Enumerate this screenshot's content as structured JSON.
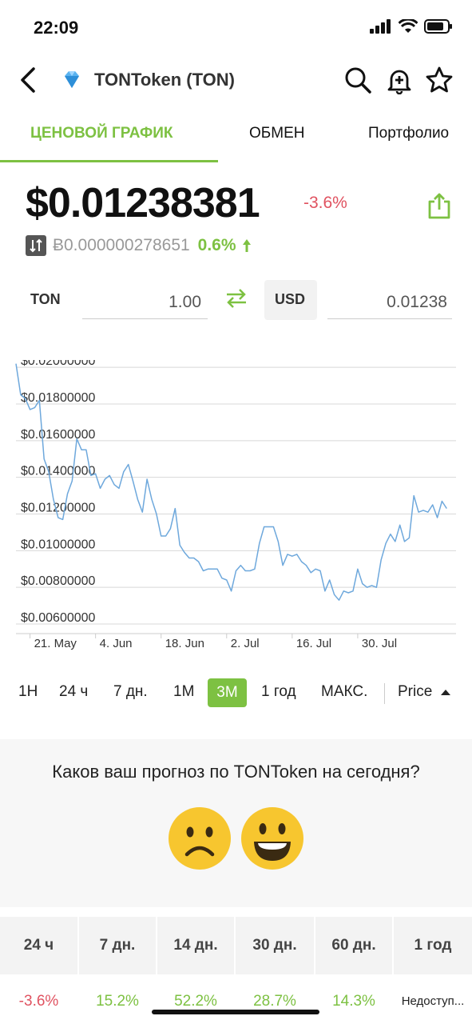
{
  "status_bar": {
    "time": "22:09"
  },
  "nav": {
    "title": "TONToken (TON)",
    "icons": [
      "back-icon",
      "diamond-icon",
      "search-icon",
      "bell-plus-icon",
      "star-icon"
    ]
  },
  "tabs": [
    {
      "label": "ЦЕНОВОЙ ГРАФИК",
      "active": true
    },
    {
      "label": "ОБМЕН",
      "active": false
    },
    {
      "label": "Портфолио",
      "active": false
    }
  ],
  "price": {
    "usd": "$0.01238381",
    "change": "-3.6%",
    "btc": "Ƀ0.000000278651",
    "btc_change": "0.6%"
  },
  "converter": {
    "from_symbol": "TON",
    "from_value": "1.00",
    "to_symbol": "USD",
    "to_value": "0.01238"
  },
  "colors": {
    "accent": "#7dc142",
    "negative": "#e05260",
    "line": "#6ea8dc"
  },
  "chart_data": {
    "type": "line",
    "title": "",
    "xlabel": "",
    "ylabel": "",
    "x_tick_labels": [
      "21. May",
      "4. Jun",
      "18. Jun",
      "2. Jul",
      "16. Jul",
      "30. Jul"
    ],
    "y_tick_labels": [
      "$0.02000000",
      "$0.01800000",
      "$0.01600000",
      "$0.01400000",
      "$0.01200000",
      "$0.01000000",
      "$0.00800000",
      "$0.00600000"
    ],
    "y_ticks": [
      0.02,
      0.018,
      0.016,
      0.014,
      0.012,
      0.01,
      0.008,
      0.006
    ],
    "ylim": [
      0.006,
      0.0204
    ],
    "x_range": [
      0,
      94
    ],
    "x_tick_positions": [
      3,
      17,
      31,
      45,
      59,
      73
    ],
    "grid": true,
    "series": [
      {
        "values": [
          0.0202,
          0.0185,
          0.0183,
          0.0177,
          0.0178,
          0.0182,
          0.015,
          0.0143,
          0.0128,
          0.0118,
          0.0117,
          0.0131,
          0.0138,
          0.0161,
          0.0155,
          0.0155,
          0.0141,
          0.0142,
          0.0134,
          0.0139,
          0.0141,
          0.0136,
          0.0134,
          0.0143,
          0.0147,
          0.0138,
          0.0128,
          0.0121,
          0.0139,
          0.0128,
          0.012,
          0.0108,
          0.0108,
          0.0112,
          0.0123,
          0.0103,
          0.0099,
          0.0096,
          0.0096,
          0.0094,
          0.0089,
          0.009,
          0.009,
          0.009,
          0.0085,
          0.0084,
          0.0078,
          0.0089,
          0.0092,
          0.0089,
          0.0089,
          0.009,
          0.0104,
          0.0113,
          0.0113,
          0.0113,
          0.0105,
          0.0092,
          0.0098,
          0.0097,
          0.0098,
          0.0094,
          0.0092,
          0.0088,
          0.009,
          0.0089,
          0.0078,
          0.0084,
          0.0076,
          0.0073,
          0.0078,
          0.0077,
          0.0078,
          0.009,
          0.0082,
          0.008,
          0.0081,
          0.008,
          0.0095,
          0.0104,
          0.0109,
          0.0105,
          0.0114,
          0.0105,
          0.0107,
          0.013,
          0.0121,
          0.0122,
          0.0121,
          0.0125,
          0.0118,
          0.0127,
          0.0123
        ]
      }
    ]
  },
  "range": {
    "options": [
      "1H",
      "24 ч",
      "7 дн.",
      "1М",
      "3М",
      "1 год",
      "МАКС."
    ],
    "active": "3М",
    "metric": "Price"
  },
  "vote": {
    "question": "Каков ваш прогноз по TONToken на сегодня?",
    "faces": [
      "sad-face-icon",
      "happy-face-icon"
    ]
  },
  "performance": {
    "headers": [
      "24 ч",
      "7 дн.",
      "14 дн.",
      "30 дн.",
      "60 дн.",
      "1 год"
    ],
    "values": [
      "-3.6%",
      "15.2%",
      "52.2%",
      "28.7%",
      "14.3%",
      "Недоступ..."
    ]
  }
}
